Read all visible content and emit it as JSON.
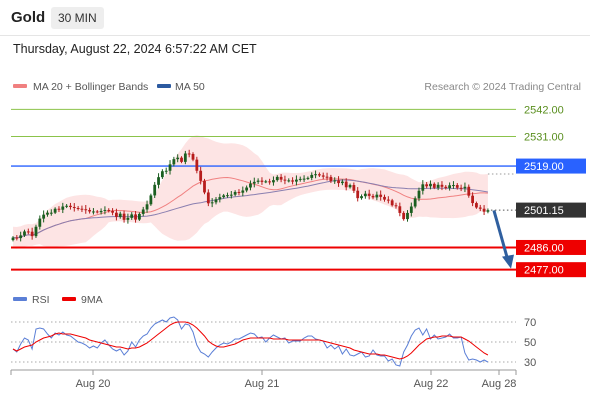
{
  "header": {
    "symbol": "Gold",
    "timeframe": "30 MIN",
    "datetime": "Thursday, August 22, 2024 6:57:22 AM CET"
  },
  "colors": {
    "bollinger": "#f08080",
    "ma50": "#2c5aa0",
    "resistance": "#8bc34a",
    "pivot": "#2962ff",
    "support": "#ee0000",
    "up_candle": "#1b5e20",
    "down_candle": "#b71c1c",
    "rsi": "#5b7fd6",
    "rsi_ma": "#ee0000",
    "arrow": "#2f5f9f"
  },
  "chart_data": [
    {
      "type": "candlestick",
      "legend": [
        {
          "label": "MA 20 + Bollinger Bands",
          "color": "#f08080"
        },
        {
          "label": "MA 50",
          "color": "#2c5aa0"
        }
      ],
      "watermark": "Research © 2024 Trading Central",
      "ylim": [
        2472,
        2547
      ],
      "x_ticks": [
        "Aug 20",
        "Aug 21",
        "Aug 22",
        "Aug 28"
      ],
      "last_price": {
        "value": "2501.15",
        "raw": 2501.15
      },
      "levels": [
        {
          "label": "2542.00",
          "value": 2542,
          "kind": "resistance"
        },
        {
          "label": "2531.00",
          "value": 2531,
          "kind": "resistance"
        },
        {
          "label": "2519.00",
          "value": 2519,
          "kind": "pivot"
        },
        {
          "label": "2486.00",
          "value": 2486,
          "kind": "support"
        },
        {
          "label": "2477.00",
          "value": 2477,
          "kind": "support"
        }
      ],
      "forecast_arrow": {
        "from": 2501,
        "to": 2477
      },
      "close": [
        2490.0,
        2489.8,
        2490.9,
        2492.5,
        2492.4,
        2490.6,
        2494.4,
        2497.7,
        2499.3,
        2500.1,
        2500.1,
        2501.7,
        2501.3,
        2502.6,
        2502.9,
        2502.4,
        2502.0,
        2501.7,
        2501.5,
        2501.2,
        2500.6,
        2500.6,
        2500.3,
        2500.8,
        2501.2,
        2500.8,
        2500.1,
        2498.4,
        2499.7,
        2497.2,
        2498.0,
        2499.4,
        2497.3,
        2499.6,
        2501.4,
        2503.5,
        2507.1,
        2511.4,
        2514.5,
        2516.9,
        2517.1,
        2519.7,
        2521.8,
        2522.4,
        2520.7,
        2524.1,
        2523.9,
        2521.6,
        2517.1,
        2513.0,
        2508.3,
        2503.9,
        2504.3,
        2505.5,
        2506.4,
        2507.1,
        2507.2,
        2507.4,
        2508.5,
        2508.2,
        2509.1,
        2510.3,
        2511.9,
        2512.6,
        2513.1,
        2512.6,
        2512.8,
        2512.4,
        2513.3,
        2514.6,
        2513.5,
        2513.1,
        2513.2,
        2512.7,
        2513.5,
        2513.8,
        2513.9,
        2514.2,
        2515.4,
        2515.7,
        2515.2,
        2514.7,
        2514.6,
        2512.9,
        2513.2,
        2512.1,
        2512.7,
        2510.4,
        2511.3,
        2509.0,
        2506.0,
        2506.8,
        2507.8,
        2506.9,
        2506.3,
        2507.4,
        2506.5,
        2505.4,
        2505.1,
        2503.1,
        2502.7,
        2500.0,
        2497.5,
        2500.0,
        2502.6,
        2505.9,
        2509.0,
        2511.6,
        2510.8,
        2511.8,
        2510.2,
        2511.4,
        2510.6,
        2510.1,
        2511.2,
        2511.3,
        2510.2,
        2510.0,
        2510.6,
        2507.0,
        2504.0,
        2502.2,
        2501.7,
        2500.5,
        2501.1
      ]
    },
    {
      "type": "line",
      "legend": [
        {
          "label": "RSI",
          "color": "#5b7fd6"
        },
        {
          "label": "9MA",
          "color": "#ee0000"
        }
      ],
      "ylim": [
        25,
        80
      ],
      "y_ticks": [
        {
          "label": "70",
          "value": 70
        },
        {
          "label": "50",
          "value": 50
        },
        {
          "label": "30",
          "value": 30
        }
      ],
      "rsi": [
        43,
        40,
        48,
        54,
        52,
        43,
        63,
        64,
        63,
        58,
        54,
        59,
        57,
        60,
        57,
        56,
        53,
        50,
        49,
        47,
        44,
        46,
        44,
        49,
        52,
        47,
        43,
        41,
        43,
        37,
        41,
        50,
        45,
        52,
        56,
        58,
        64,
        68,
        70,
        72,
        70,
        74,
        75,
        72,
        63,
        68,
        67,
        60,
        47,
        40,
        38,
        35,
        40,
        44,
        47,
        49,
        48,
        50,
        53,
        53,
        55,
        57,
        59,
        58,
        54,
        55,
        50,
        54,
        57,
        55,
        53,
        54,
        49,
        51,
        51,
        51,
        54,
        56,
        56,
        53,
        52,
        51,
        44,
        47,
        43,
        46,
        38,
        43,
        37,
        36,
        38,
        40,
        35,
        36,
        42,
        37,
        36,
        36,
        31,
        33,
        27,
        26,
        40,
        47,
        56,
        62,
        64,
        57,
        63,
        53,
        57,
        53,
        54,
        55,
        58,
        54,
        54,
        55,
        39,
        32,
        33,
        32,
        30,
        32,
        30
      ],
      "rsi_ma": [
        43,
        41,
        43,
        45,
        46,
        47,
        50,
        52,
        54,
        55,
        56,
        58,
        59,
        58,
        58,
        58,
        57,
        56,
        55,
        54,
        52,
        51,
        50,
        49,
        48,
        47,
        46,
        45,
        45,
        44,
        43,
        44,
        44,
        45,
        47,
        49,
        52,
        55,
        58,
        61,
        64,
        67,
        69,
        70,
        70,
        70,
        69,
        67,
        64,
        60,
        56,
        51,
        48,
        46,
        45,
        45,
        46,
        47,
        48,
        50,
        52,
        53,
        54,
        54,
        54,
        54,
        54,
        54,
        53,
        53,
        53,
        53,
        52,
        52,
        52,
        52,
        52,
        52,
        52,
        52,
        52,
        51,
        50,
        49,
        48,
        47,
        46,
        45,
        44,
        42,
        41,
        40,
        39,
        38,
        38,
        38,
        37,
        37,
        36,
        35,
        34,
        33,
        34,
        36,
        39,
        43,
        47,
        50,
        53,
        54,
        55,
        55,
        56,
        56,
        56,
        55,
        55,
        55,
        53,
        51,
        48,
        45,
        42,
        39,
        37
      ]
    }
  ]
}
